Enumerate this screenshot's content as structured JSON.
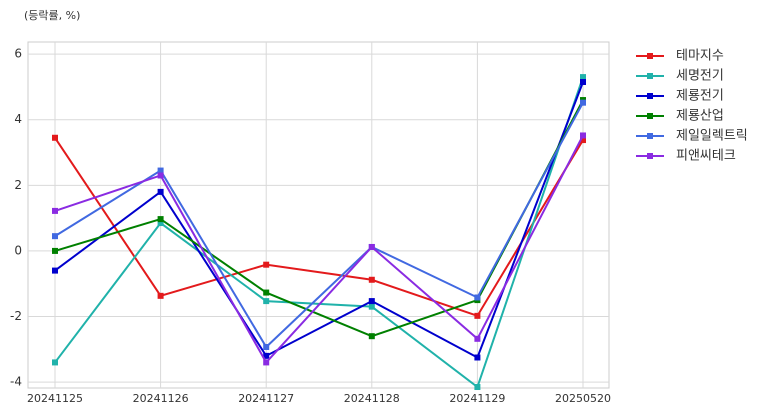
{
  "chart_data": {
    "type": "line",
    "y_label": "(등락률, %)",
    "categories": [
      "20241125",
      "20241126",
      "20241127",
      "20241128",
      "20241129",
      "20250520"
    ],
    "series": [
      {
        "name": "테마지수",
        "color": "#e31a1c",
        "values": [
          3.45,
          -1.37,
          -0.42,
          -0.88,
          -1.98,
          3.38
        ]
      },
      {
        "name": "세명전기",
        "color": "#20b2aa",
        "values": [
          -3.4,
          0.85,
          -1.53,
          -1.7,
          -4.15,
          5.3
        ]
      },
      {
        "name": "제룡전기",
        "color": "#0000cd",
        "values": [
          -0.6,
          1.8,
          -3.2,
          -1.53,
          -3.25,
          5.15
        ]
      },
      {
        "name": "제룡산업",
        "color": "#008000",
        "values": [
          0.0,
          0.97,
          -1.27,
          -2.6,
          -1.5,
          4.6
        ]
      },
      {
        "name": "제일일렉트릭",
        "color": "#4169e1",
        "values": [
          0.45,
          2.45,
          -2.93,
          0.12,
          -1.42,
          4.52
        ]
      },
      {
        "name": "피앤씨테크",
        "color": "#8a2be2",
        "values": [
          1.22,
          2.3,
          -3.4,
          0.12,
          -2.68,
          3.52
        ]
      }
    ],
    "ylim": [
      -4.18,
      6.37
    ],
    "yticks": [
      -4,
      -2,
      0,
      2,
      4,
      6
    ],
    "grid": true,
    "legend": "outside-right"
  }
}
